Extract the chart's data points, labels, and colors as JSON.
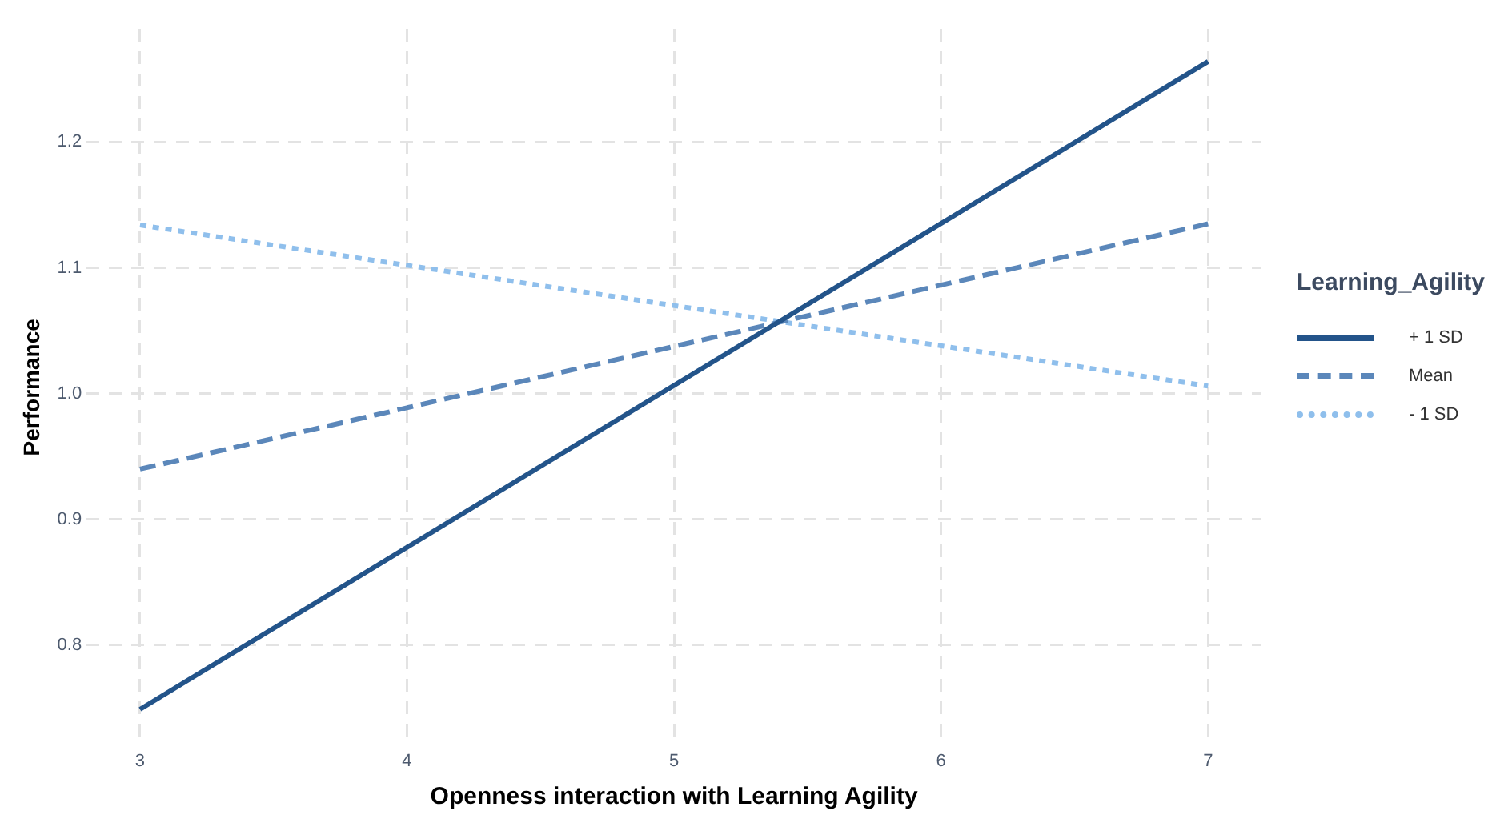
{
  "chart_data": {
    "type": "line",
    "xlabel": "Openness interaction with Learning Agility",
    "ylabel": "Performance",
    "legend_title": "Learning_Agility",
    "legend": "right",
    "grid": true,
    "marker": "none",
    "x": [
      3,
      7
    ],
    "xlim": [
      2.8,
      7.2
    ],
    "xticks": [
      3,
      4,
      5,
      6,
      7
    ],
    "ylim": [
      0.72,
      1.29
    ],
    "yticks": [
      0.8,
      0.9,
      {
        "value": 1,
        "label": "1.0"
      },
      1.1,
      1.2
    ],
    "series": [
      {
        "name": "+ 1 SD",
        "color": "#23548a",
        "line_style": "solid",
        "values": [
          0.749,
          1.264
        ]
      },
      {
        "name": "Mean",
        "color": "#5b87ba",
        "line_style": "dashed",
        "values": [
          0.94,
          1.135
        ]
      },
      {
        "name": "- 1 SD",
        "color": "#8fbfec",
        "line_style": "dotted",
        "values": [
          1.134,
          1.006
        ]
      }
    ]
  }
}
